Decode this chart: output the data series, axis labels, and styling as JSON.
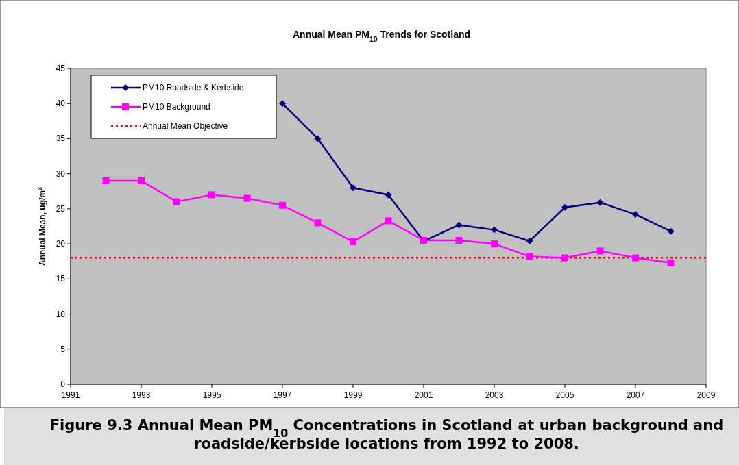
{
  "chart_data": {
    "type": "line",
    "title": "Annual Mean PM$_{10}$ Trends for Scotland",
    "ylabel": "Annual Mean, ug/m$^{3}$",
    "x": [
      1992,
      1993,
      1994,
      1995,
      1996,
      1997,
      1998,
      1999,
      2000,
      2001,
      2002,
      2003,
      2004,
      2005,
      2006,
      2007,
      2008
    ],
    "series": [
      {
        "name": "PM10 Roadside & Kerbside",
        "color": "#000080",
        "marker": "diamond",
        "values": [
          null,
          null,
          null,
          null,
          null,
          40,
          35,
          28,
          27,
          20.4,
          22.7,
          22.0,
          20.4,
          25.2,
          25.9,
          24.2,
          21.8
        ]
      },
      {
        "name": "PM10 Background",
        "color": "#ff00ff",
        "marker": "square",
        "values": [
          29,
          29,
          26,
          27,
          26.5,
          25.5,
          23,
          20.3,
          23.3,
          20.5,
          20.5,
          20.0,
          18.2,
          18.0,
          19.0,
          18.0,
          17.3
        ]
      }
    ],
    "ref_lines": [
      {
        "axis": "y",
        "value": 18,
        "label": "Annual Mean Objective",
        "color": "#ff0000",
        "line_style": "dotted"
      }
    ],
    "xlim": [
      1991,
      2009
    ],
    "xticks": [
      1991,
      1993,
      1995,
      1997,
      1999,
      2001,
      2003,
      2005,
      2007,
      2009
    ],
    "ylim": [
      0,
      45
    ],
    "yticks": [
      0,
      5,
      10,
      15,
      20,
      25,
      30,
      35,
      40,
      45
    ],
    "grid": false,
    "legend": "top left",
    "annotations": [
      "Figure 9.3 Annual Mean PM$_{10}$ Concentrations in Scotland at urban background and roadside/kerbside locations from 1992 to 2008."
    ]
  }
}
